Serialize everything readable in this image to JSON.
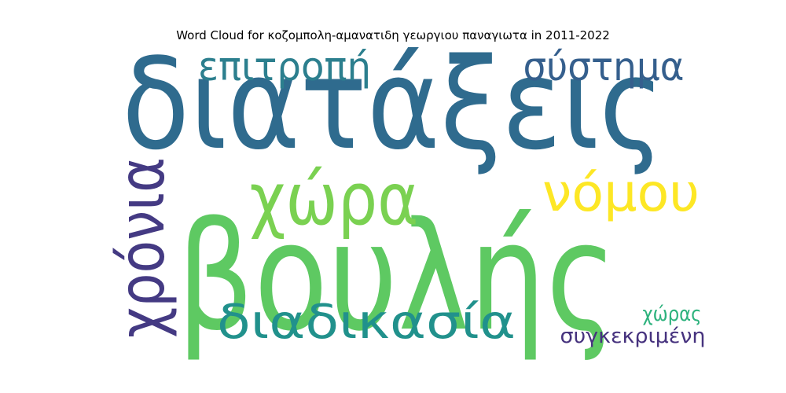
{
  "chart_data": {
    "type": "wordcloud",
    "title": "Word Cloud for κοζομπολη-αμανατιδη γεωργιου παναγιωτα in 2011-2022",
    "words": [
      {
        "text": "διατάξεις",
        "weight": 100,
        "color": "#2f6b8e",
        "vertical": false
      },
      {
        "text": "βουλής",
        "weight": 96,
        "color": "#5ec962",
        "vertical": false
      },
      {
        "text": "χώρα",
        "weight": 56,
        "color": "#7ad151",
        "vertical": false
      },
      {
        "text": "χρόνια",
        "weight": 45,
        "color": "#443a83",
        "vertical": true
      },
      {
        "text": "νόμου",
        "weight": 45,
        "color": "#fde725",
        "vertical": false
      },
      {
        "text": "διαδικασία",
        "weight": 43,
        "color": "#21918c",
        "vertical": false
      },
      {
        "text": "επιτροπή",
        "weight": 40,
        "color": "#2c7f8e",
        "vertical": false
      },
      {
        "text": "σύστημα",
        "weight": 40,
        "color": "#355f8d",
        "vertical": false
      },
      {
        "text": "χώρας",
        "weight": 22,
        "color": "#2db27d",
        "vertical": false
      },
      {
        "text": "συγκεκριμένη",
        "weight": 22,
        "color": "#46327e",
        "vertical": false
      }
    ]
  }
}
